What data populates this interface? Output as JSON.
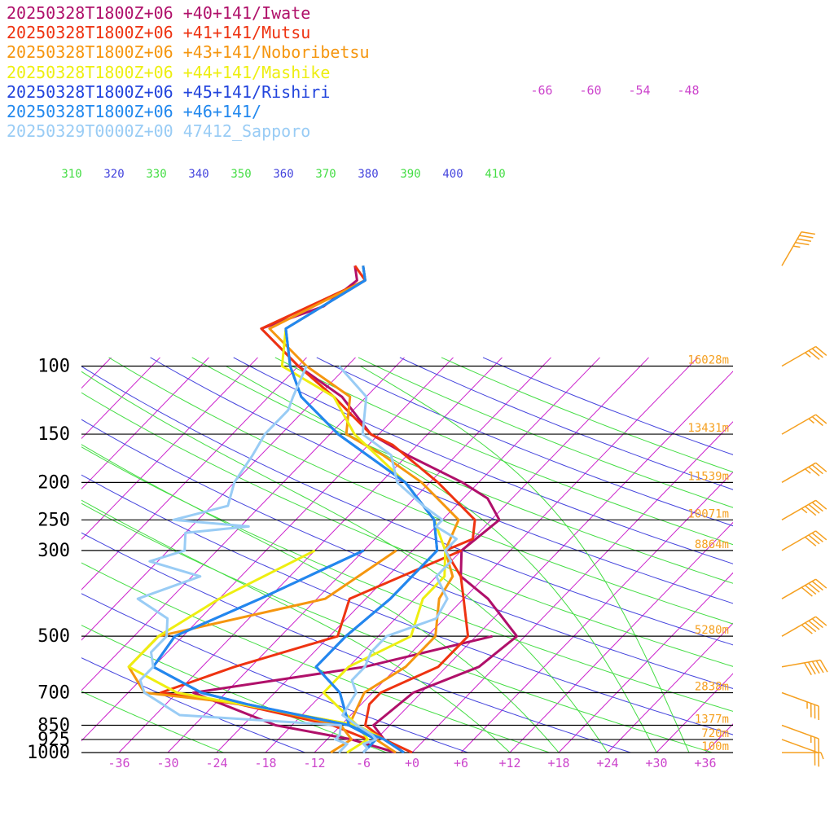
{
  "chart_data": {
    "type": "line",
    "chart_kind": "skew-T log-P sounding",
    "legend": [
      {
        "label": "20250328T1800Z+06 +40+141/Iwate",
        "color": "#b0106a"
      },
      {
        "label": "20250328T1800Z+06 +41+141/Mutsu",
        "color": "#ee3311"
      },
      {
        "label": "20250328T1800Z+06 +43+141/Noboribetsu",
        "color": "#f5960f"
      },
      {
        "label": "20250328T1800Z+06 +44+141/Mashike",
        "color": "#eeee11"
      },
      {
        "label": "20250328T1800Z+06 +45+141/Rishiri",
        "color": "#2244dd"
      },
      {
        "label": "20250328T1800Z+06 +46+141/",
        "color": "#2288ee"
      },
      {
        "label": "20250329T0000Z+00 47412_Sapporo",
        "color": "#99ccf5"
      }
    ],
    "pressure_levels": [
      {
        "p": 100,
        "label": "100",
        "height": "16028m"
      },
      {
        "p": 150,
        "label": "150",
        "height": "13431m"
      },
      {
        "p": 200,
        "label": "200",
        "height": "11539m"
      },
      {
        "p": 250,
        "label": "250",
        "height": "10071m"
      },
      {
        "p": 300,
        "label": "300",
        "height": "8864m"
      },
      {
        "p": 500,
        "label": "500",
        "height": "5280m"
      },
      {
        "p": 700,
        "label": "700",
        "height": "2838m"
      },
      {
        "p": 850,
        "label": "850",
        "height": "1377m"
      },
      {
        "p": 925,
        "label": "925",
        "height": "720m"
      },
      {
        "p": 1000,
        "label": "1000",
        "height": "100m"
      }
    ],
    "temperature_ticks": [
      "-36",
      "-30",
      "-24",
      "-18",
      "-12",
      "-6",
      "+0",
      "+6",
      "+12",
      "+18",
      "+24",
      "+30",
      "+36"
    ],
    "upper_temperature_ticks": [
      "-66",
      "-60",
      "-54",
      "-48"
    ],
    "theta_ticks": [
      {
        "label": "310",
        "color": "#44dd44"
      },
      {
        "label": "320",
        "color": "#4444dd"
      },
      {
        "label": "330",
        "color": "#44dd44"
      },
      {
        "label": "340",
        "color": "#4444dd"
      },
      {
        "label": "350",
        "color": "#44dd44"
      },
      {
        "label": "360",
        "color": "#4444dd"
      },
      {
        "label": "370",
        "color": "#44dd44"
      },
      {
        "label": "380",
        "color": "#4444dd"
      },
      {
        "label": "390",
        "color": "#44dd44"
      },
      {
        "label": "400",
        "color": "#4444dd"
      },
      {
        "label": "410",
        "color": "#44dd44"
      }
    ],
    "series": [
      {
        "name": "20250328T1800Z+06 +40+141/Iwate",
        "color": "#b0106a",
        "temperature": [
          [
            1000,
            -1
          ],
          [
            925,
            -5
          ],
          [
            850,
            -8
          ],
          [
            700,
            -7
          ],
          [
            600,
            -2
          ],
          [
            500,
            -1
          ],
          [
            400,
            -9
          ],
          [
            350,
            -15
          ],
          [
            300,
            -18
          ],
          [
            250,
            -17
          ],
          [
            220,
            -21
          ],
          [
            200,
            -26
          ],
          [
            170,
            -36
          ],
          [
            150,
            -43
          ],
          [
            120,
            -51
          ],
          [
            100,
            -60
          ],
          [
            80,
            -69
          ],
          [
            70,
            -64
          ],
          [
            60,
            -63
          ],
          [
            55,
            -65
          ]
        ],
        "dewpoint": [
          [
            1000,
            -2
          ],
          [
            925,
            -9
          ],
          [
            850,
            -20
          ],
          [
            700,
            -34
          ],
          [
            600,
            -16
          ],
          [
            500,
            -4
          ]
        ]
      },
      {
        "name": "20250328T1800Z+06 +41+141/Mutsu",
        "color": "#ee3311",
        "temperature": [
          [
            1000,
            0
          ],
          [
            925,
            -5
          ],
          [
            850,
            -9
          ],
          [
            750,
            -11
          ],
          [
            700,
            -11
          ],
          [
            600,
            -7
          ],
          [
            500,
            -7
          ],
          [
            400,
            -12
          ],
          [
            350,
            -15
          ],
          [
            300,
            -20
          ],
          [
            280,
            -18
          ],
          [
            250,
            -20
          ],
          [
            200,
            -29
          ],
          [
            160,
            -39
          ],
          [
            150,
            -43
          ],
          [
            120,
            -52
          ],
          [
            100,
            -60
          ],
          [
            80,
            -69
          ],
          [
            60,
            -62
          ],
          [
            55,
            -65
          ]
        ],
        "dewpoint": [
          [
            925,
            -7
          ],
          [
            850,
            -13
          ],
          [
            750,
            -27
          ],
          [
            700,
            -38
          ],
          [
            600,
            -32
          ],
          [
            500,
            -23
          ],
          [
            400,
            -26
          ],
          [
            300,
            -18
          ]
        ]
      },
      {
        "name": "20250328T1800Z+06 +43+141/Noboribetsu",
        "color": "#f5960f",
        "temperature": [
          [
            1000,
            -2
          ],
          [
            925,
            -6
          ],
          [
            850,
            -11
          ],
          [
            700,
            -13
          ],
          [
            600,
            -11
          ],
          [
            500,
            -11
          ],
          [
            400,
            -15
          ],
          [
            350,
            -16
          ],
          [
            300,
            -20
          ],
          [
            250,
            -22
          ],
          [
            200,
            -31
          ],
          [
            170,
            -39
          ],
          [
            150,
            -46
          ],
          [
            120,
            -50
          ],
          [
            100,
            -59
          ],
          [
            80,
            -68
          ],
          [
            60,
            -62
          ],
          [
            55,
            -64
          ]
        ],
        "dewpoint": [
          [
            1000,
            -10
          ],
          [
            925,
            -9
          ],
          [
            850,
            -12
          ],
          [
            750,
            -26
          ],
          [
            700,
            -40
          ],
          [
            600,
            -45
          ],
          [
            500,
            -45
          ],
          [
            400,
            -29
          ],
          [
            300,
            -26
          ]
        ]
      },
      {
        "name": "20250328T1800Z+06 +44+141/Mashike",
        "color": "#eeee11",
        "temperature": [
          [
            1000,
            -1
          ],
          [
            925,
            -5
          ],
          [
            850,
            -10
          ],
          [
            700,
            -18
          ],
          [
            600,
            -18
          ],
          [
            500,
            -14
          ],
          [
            400,
            -17
          ],
          [
            350,
            -17
          ],
          [
            300,
            -20
          ],
          [
            250,
            -25
          ],
          [
            200,
            -33
          ],
          [
            150,
            -45
          ],
          [
            120,
            -52
          ],
          [
            100,
            -62
          ],
          [
            80,
            -66
          ],
          [
            60,
            -62
          ],
          [
            55,
            -64
          ]
        ],
        "dewpoint": [
          [
            1000,
            -8
          ],
          [
            925,
            -7
          ],
          [
            850,
            -10
          ],
          [
            700,
            -36
          ],
          [
            600,
            -45
          ],
          [
            500,
            -45
          ],
          [
            400,
            -42
          ],
          [
            300,
            -36
          ]
        ]
      },
      {
        "name": "20250328T1800Z+06 +45+141/Rishiri",
        "color": "#2244dd",
        "temperature": [
          [
            1000,
            -1
          ],
          [
            925,
            -5
          ],
          [
            850,
            -11
          ],
          [
            700,
            -16
          ],
          [
            600,
            -22
          ],
          [
            500,
            -22
          ],
          [
            400,
            -21
          ],
          [
            300,
            -21
          ],
          [
            250,
            -25
          ],
          [
            200,
            -33
          ],
          [
            150,
            -47
          ],
          [
            120,
            -56
          ],
          [
            100,
            -61
          ],
          [
            80,
            -66
          ],
          [
            60,
            -62
          ],
          [
            55,
            -64
          ]
        ],
        "dewpoint": [
          [
            1000,
            -6
          ],
          [
            925,
            -6
          ],
          [
            850,
            -11
          ],
          [
            750,
            -26
          ],
          [
            700,
            -33
          ],
          [
            600,
            -42
          ],
          [
            500,
            -43
          ],
          [
            400,
            -37
          ],
          [
            300,
            -30
          ]
        ]
      },
      {
        "name": "20250328T1800Z+06 +46+141/",
        "color": "#2288ee",
        "temperature": [
          [
            1000,
            -1
          ],
          [
            925,
            -5
          ],
          [
            850,
            -11
          ],
          [
            700,
            -16
          ],
          [
            600,
            -22
          ],
          [
            500,
            -22
          ],
          [
            400,
            -21
          ],
          [
            300,
            -21
          ],
          [
            250,
            -25
          ],
          [
            200,
            -33
          ],
          [
            150,
            -47
          ],
          [
            120,
            -56
          ],
          [
            100,
            -61
          ],
          [
            80,
            -66
          ],
          [
            60,
            -62
          ],
          [
            55,
            -64
          ]
        ],
        "dewpoint": [
          [
            1000,
            -6
          ],
          [
            925,
            -6
          ],
          [
            850,
            -11
          ],
          [
            750,
            -26
          ],
          [
            700,
            -33
          ],
          [
            600,
            -42
          ],
          [
            500,
            -43
          ],
          [
            400,
            -37
          ],
          [
            300,
            -30
          ]
        ]
      },
      {
        "name": "20250329T0000Z+00 47412_Sapporo",
        "color": "#99ccf5",
        "temperature": [
          [
            1000,
            -6
          ],
          [
            975,
            -6
          ],
          [
            950,
            -7
          ],
          [
            925,
            -6
          ],
          [
            900,
            -7
          ],
          [
            850,
            -10
          ],
          [
            800,
            -13
          ],
          [
            700,
            -14
          ],
          [
            650,
            -16
          ],
          [
            600,
            -16
          ],
          [
            550,
            -17
          ],
          [
            500,
            -17
          ],
          [
            450,
            -13
          ],
          [
            400,
            -14
          ],
          [
            350,
            -18
          ],
          [
            320,
            -18
          ],
          [
            300,
            -20
          ],
          [
            280,
            -20
          ],
          [
            260,
            -24
          ],
          [
            250,
            -24
          ],
          [
            230,
            -28
          ],
          [
            200,
            -34
          ],
          [
            170,
            -38
          ],
          [
            150,
            -44
          ],
          [
            120,
            -48
          ],
          [
            100,
            -55
          ]
        ],
        "dewpoint": [
          [
            1000,
            -9
          ],
          [
            975,
            -9
          ],
          [
            950,
            -9
          ],
          [
            925,
            -11
          ],
          [
            900,
            -11
          ],
          [
            850,
            -12
          ],
          [
            800,
            -33
          ],
          [
            700,
            -40
          ],
          [
            650,
            -42
          ],
          [
            600,
            -42
          ],
          [
            550,
            -44
          ],
          [
            500,
            -44
          ],
          [
            450,
            -46
          ],
          [
            400,
            -52
          ],
          [
            350,
            -47
          ],
          [
            320,
            -55
          ],
          [
            300,
            -52
          ],
          [
            270,
            -54
          ],
          [
            260,
            -47
          ],
          [
            250,
            -57
          ],
          [
            230,
            -52
          ],
          [
            200,
            -54
          ],
          [
            170,
            -55
          ],
          [
            150,
            -56
          ],
          [
            130,
            -56
          ],
          [
            120,
            -57
          ],
          [
            100,
            -59
          ]
        ]
      }
    ],
    "wind_barbs": [
      {
        "p": 1000,
        "dir": 270,
        "kt": 5
      },
      {
        "p": 925,
        "dir": 290,
        "kt": 20
      },
      {
        "p": 850,
        "dir": 290,
        "kt": 25
      },
      {
        "p": 700,
        "dir": 290,
        "kt": 35
      },
      {
        "p": 600,
        "dir": 260,
        "kt": 50
      },
      {
        "p": 500,
        "dir": 240,
        "kt": 50
      },
      {
        "p": 400,
        "dir": 240,
        "kt": 50
      },
      {
        "p": 300,
        "dir": 240,
        "kt": 40
      },
      {
        "p": 250,
        "dir": 240,
        "kt": 45
      },
      {
        "p": 200,
        "dir": 240,
        "kt": 35
      },
      {
        "p": 150,
        "dir": 240,
        "kt": 25
      },
      {
        "p": 100,
        "dir": 240,
        "kt": 35
      },
      {
        "p": 55,
        "dir": 210,
        "kt": 45
      }
    ]
  }
}
